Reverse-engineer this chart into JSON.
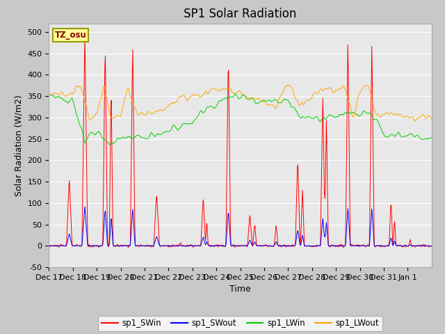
{
  "title": "SP1 Solar Radiation",
  "ylabel": "Solar Radiation (W/m2)",
  "xlabel": "Time",
  "ylim": [
    -50,
    520
  ],
  "xlim": [
    0,
    16
  ],
  "xtick_labels": [
    "Dec 17",
    "Dec 18",
    "Dec 19",
    "Dec 20",
    "Dec 21",
    "Dec 22",
    "Dec 23",
    "Dec 24",
    "Dec 25",
    "Dec 26",
    "Dec 27",
    "Dec 28",
    "Dec 29",
    "Dec 30",
    "Dec 31",
    "Jan 1"
  ],
  "ytick_values": [
    -50,
    0,
    50,
    100,
    150,
    200,
    250,
    300,
    350,
    400,
    450,
    500
  ],
  "colors": {
    "sp1_SWin": "#FF0000",
    "sp1_SWout": "#0000FF",
    "sp1_LWin": "#00CC00",
    "sp1_LWout": "#FFA500"
  },
  "legend_labels": [
    "sp1_SWin",
    "sp1_SWout",
    "sp1_LWin",
    "sp1_LWout"
  ],
  "tz_label": "TZ_osu",
  "title_fontsize": 12,
  "axis_fontsize": 9,
  "tick_fontsize": 8
}
